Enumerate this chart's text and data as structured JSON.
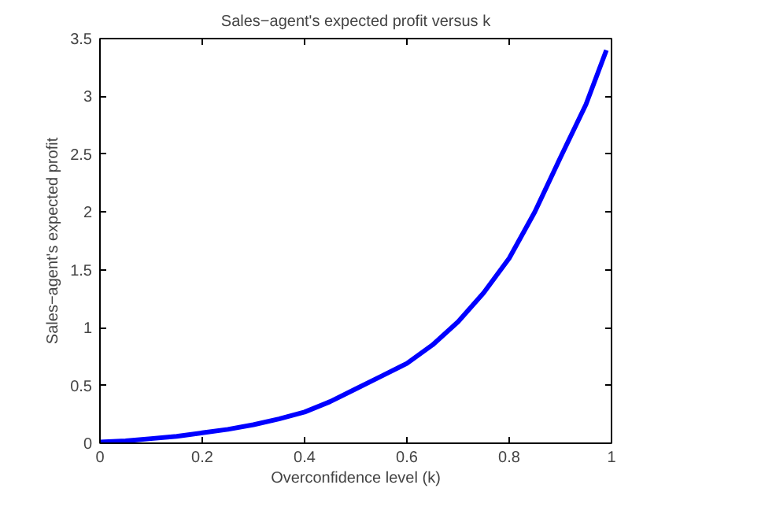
{
  "chart_data": {
    "type": "line",
    "title": "Sales−agent's expected profit versus k",
    "xlabel": "Overconfidence level (k)",
    "ylabel": "Sales−agent's expected profit",
    "x": [
      0,
      0.05,
      0.1,
      0.15,
      0.2,
      0.25,
      0.3,
      0.35,
      0.4,
      0.45,
      0.5,
      0.55,
      0.6,
      0.65,
      0.7,
      0.75,
      0.8,
      0.85,
      0.9,
      0.95,
      0.99
    ],
    "series": [
      {
        "color": "#0000ff",
        "values": [
          0.01,
          0.02,
          0.04,
          0.06,
          0.09,
          0.12,
          0.16,
          0.21,
          0.27,
          0.36,
          0.47,
          0.58,
          0.69,
          0.85,
          1.05,
          1.3,
          1.6,
          2.0,
          2.47,
          2.93,
          3.4
        ]
      }
    ],
    "xlim": [
      0,
      1
    ],
    "ylim": [
      0,
      3.5
    ],
    "xticks": [
      0,
      0.2,
      0.4,
      0.6,
      0.8,
      1
    ],
    "yticks": [
      0,
      0.5,
      1,
      1.5,
      2,
      2.5,
      3,
      3.5
    ],
    "grid": false
  }
}
